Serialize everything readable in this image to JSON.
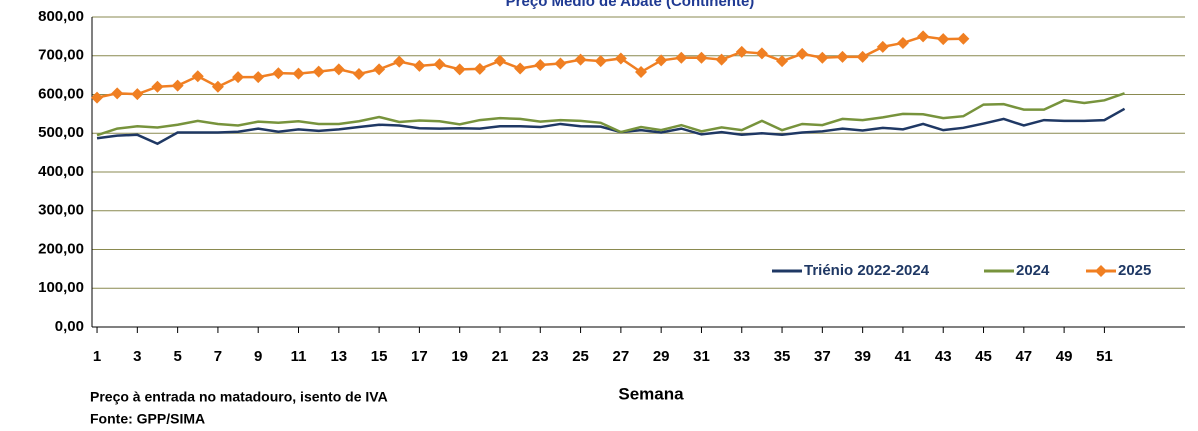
{
  "chart_data": {
    "type": "line",
    "title": "Preço Médio de Abate (Continente)",
    "x_label": "Semana",
    "notes": [
      "Preço à entrada no matadouro, isento de IVA",
      "Fonte: GPP/SIMA"
    ],
    "x": [
      1,
      2,
      3,
      4,
      5,
      6,
      7,
      8,
      9,
      10,
      11,
      12,
      13,
      14,
      15,
      16,
      17,
      18,
      19,
      20,
      21,
      22,
      23,
      24,
      25,
      26,
      27,
      28,
      29,
      30,
      31,
      32,
      33,
      34,
      35,
      36,
      37,
      38,
      39,
      40,
      41,
      42,
      43,
      44,
      45,
      46,
      47,
      48,
      49,
      50,
      51,
      52
    ],
    "xlim": [
      0.75,
      55
    ],
    "xticks": [
      1,
      3,
      5,
      7,
      9,
      11,
      13,
      15,
      17,
      19,
      21,
      23,
      25,
      27,
      29,
      31,
      33,
      35,
      37,
      39,
      41,
      43,
      45,
      47,
      49,
      51
    ],
    "ylim": [
      0,
      800
    ],
    "yticks": [
      {
        "value": 0,
        "label": "0,00"
      },
      {
        "value": 100,
        "label": "100,00"
      },
      {
        "value": 200,
        "label": "200,00"
      },
      {
        "value": 300,
        "label": "300,00"
      },
      {
        "value": 400,
        "label": "400,00"
      },
      {
        "value": 500,
        "label": "500,00"
      },
      {
        "value": 600,
        "label": "600,00"
      },
      {
        "value": 700,
        "label": "700,00"
      },
      {
        "value": 800,
        "label": "800,00"
      }
    ],
    "grid": true,
    "legend": "lower right",
    "series": [
      {
        "name": "Triénio 2022-2024",
        "color": "#1f3864",
        "marker": "none",
        "values": [
          487,
          494,
          496,
          473,
          502,
          502,
          502,
          504,
          512,
          504,
          510,
          506,
          510,
          516,
          522,
          520,
          513,
          512,
          513,
          512,
          518,
          518,
          516,
          524,
          518,
          517,
          503,
          508,
          502,
          512,
          497,
          503,
          496,
          500,
          496,
          502,
          505,
          512,
          507,
          514,
          510,
          524,
          508,
          514,
          525,
          537,
          520,
          534,
          532,
          532,
          534,
          563
        ]
      },
      {
        "name": "2024",
        "color": "#77933c",
        "marker": "none",
        "values": [
          495,
          512,
          518,
          515,
          522,
          532,
          524,
          520,
          530,
          527,
          531,
          524,
          524,
          531,
          542,
          529,
          533,
          531,
          523,
          534,
          539,
          537,
          530,
          534,
          532,
          527,
          503,
          516,
          508,
          521,
          505,
          515,
          508,
          532,
          508,
          524,
          521,
          537,
          534,
          541,
          550,
          549,
          539,
          544,
          574,
          575,
          561,
          561,
          585,
          578,
          585,
          603
        ]
      },
      {
        "name": "2025",
        "color": "#f07f22",
        "marker": "diamond",
        "values": [
          592,
          603,
          601,
          620,
          623,
          647,
          620,
          645,
          645,
          655,
          654,
          659,
          665,
          653,
          665,
          685,
          674,
          678,
          665,
          666,
          687,
          667,
          676,
          680,
          690,
          686,
          693,
          658,
          688,
          695,
          695,
          690,
          710,
          706,
          686,
          705,
          695,
          697,
          697,
          723,
          733,
          750,
          743,
          744,
          null,
          null,
          null,
          null,
          null,
          null,
          null,
          null
        ]
      }
    ]
  }
}
